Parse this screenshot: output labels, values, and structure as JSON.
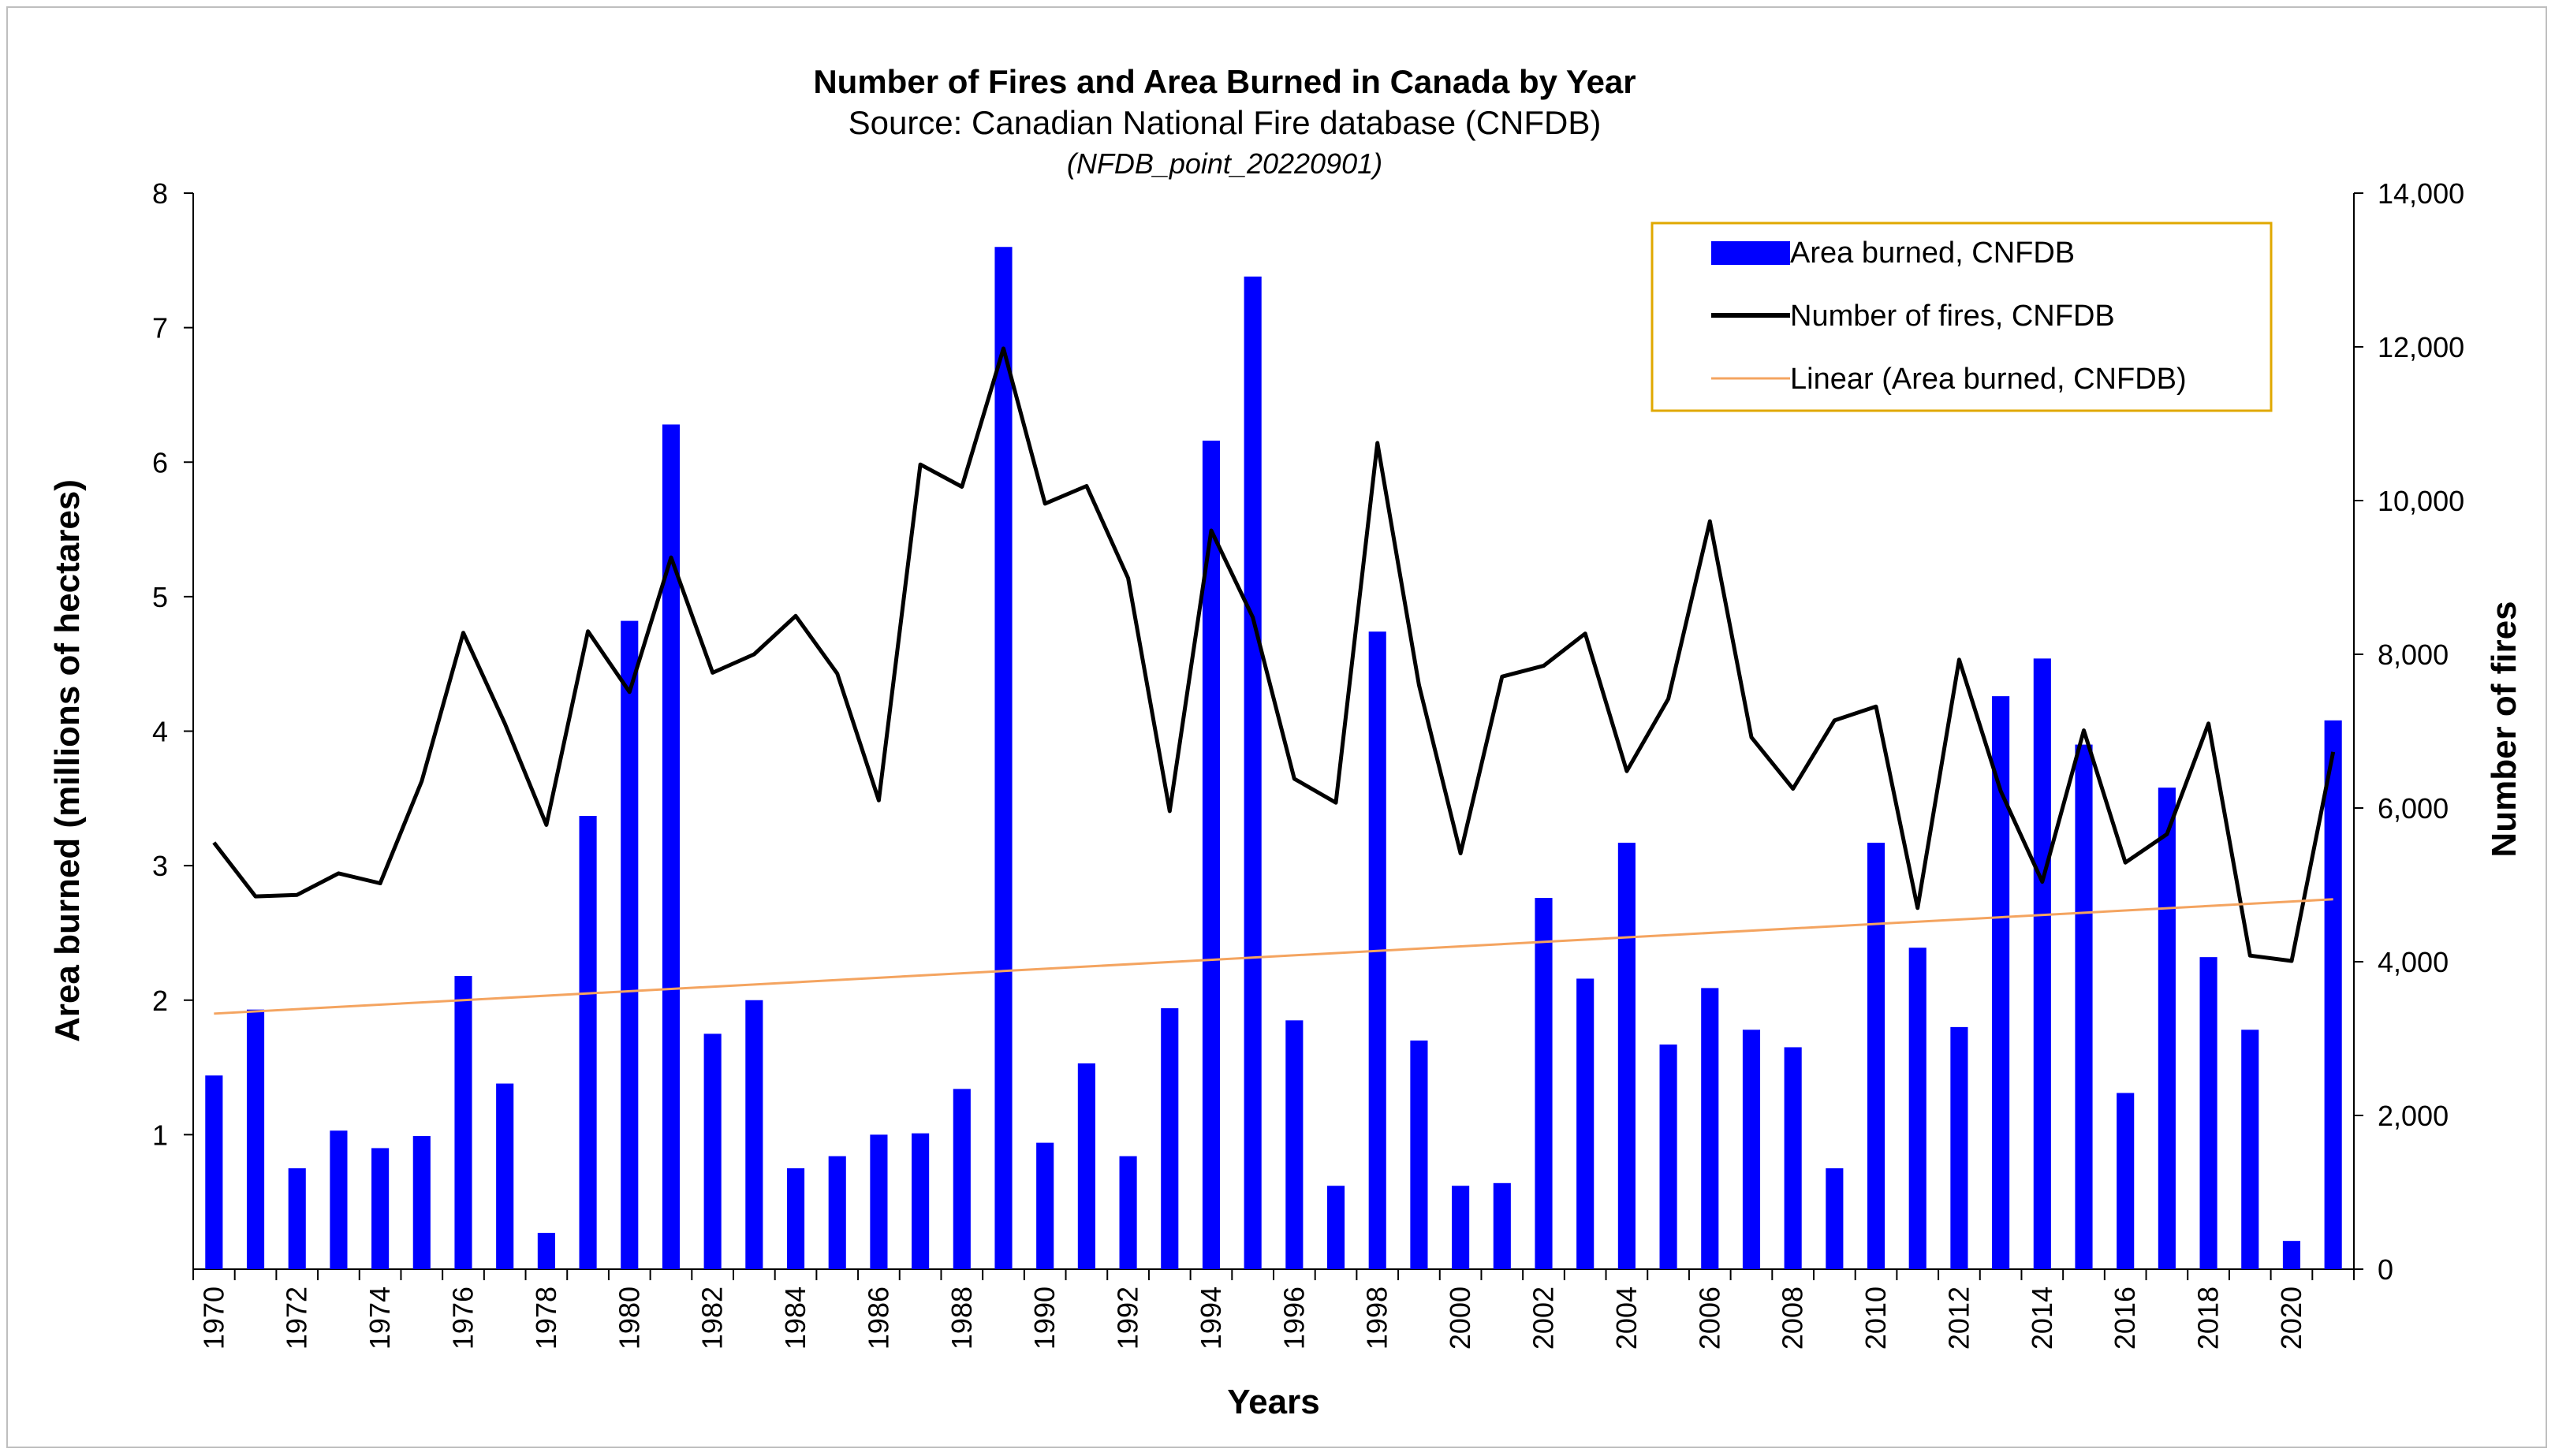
{
  "chart_data": {
    "type": "bar+line",
    "title": "Number of Fires and Area Burned in Canada by Year",
    "subtitle": "Source: Canadian National Fire database (CNFDB)",
    "source_note": "(NFDB_point_20220901)",
    "xlabel": "Years",
    "ylabel_left": "Area burned (millions of hectares)",
    "ylabel_right": "Number of fires",
    "ylim_left": [
      0,
      8
    ],
    "ylim_right": [
      0,
      14000
    ],
    "y_left_ticks": [
      "1",
      "2",
      "3",
      "4",
      "5",
      "6",
      "7",
      "8"
    ],
    "y_right_ticks": [
      "0",
      "2,000",
      "4,000",
      "6,000",
      "8,000",
      "10,000",
      "12,000",
      "14,000"
    ],
    "x_tick_labels": [
      "1970",
      "1972",
      "1974",
      "1976",
      "1978",
      "1980",
      "1982",
      "1984",
      "1986",
      "1988",
      "1990",
      "1992",
      "1994",
      "1996",
      "1998",
      "2000",
      "2002",
      "2004",
      "2006",
      "2008",
      "2010",
      "2012",
      "2014",
      "2016",
      "2018",
      "2020"
    ],
    "years": [
      1970,
      1971,
      1972,
      1973,
      1974,
      1975,
      1976,
      1977,
      1978,
      1979,
      1980,
      1981,
      1982,
      1983,
      1984,
      1985,
      1986,
      1987,
      1988,
      1989,
      1990,
      1991,
      1992,
      1993,
      1994,
      1995,
      1996,
      1997,
      1998,
      1999,
      2000,
      2001,
      2002,
      2003,
      2004,
      2005,
      2006,
      2007,
      2008,
      2009,
      2010,
      2011,
      2012,
      2013,
      2014,
      2015,
      2016,
      2017,
      2018,
      2019,
      2020,
      2021
    ],
    "series": [
      {
        "name": "Area burned, CNFDB",
        "kind": "bar",
        "axis": "left",
        "color": "#0000ff",
        "values": [
          1.44,
          1.93,
          0.75,
          1.03,
          0.9,
          0.99,
          2.18,
          1.38,
          0.27,
          3.37,
          4.82,
          6.28,
          1.75,
          2.0,
          0.75,
          0.84,
          1.0,
          1.01,
          1.34,
          7.6,
          0.94,
          1.53,
          0.84,
          1.94,
          6.16,
          7.38,
          1.85,
          0.62,
          4.74,
          1.7,
          0.62,
          0.64,
          2.76,
          2.16,
          3.17,
          1.67,
          2.09,
          1.78,
          1.65,
          0.75,
          3.17,
          2.39,
          1.8,
          4.26,
          4.54,
          3.9,
          1.31,
          3.58,
          2.32,
          1.78,
          0.21,
          4.08
        ]
      },
      {
        "name": "Number of fires, CNFDB",
        "kind": "line",
        "axis": "right",
        "color": "#000000",
        "values": [
          5550,
          4850,
          4870,
          5150,
          5020,
          6350,
          8280,
          7100,
          5780,
          8300,
          7510,
          9260,
          7760,
          8000,
          8500,
          7750,
          6100,
          10470,
          10180,
          11980,
          9960,
          10190,
          8990,
          5960,
          9610,
          8480,
          6380,
          6070,
          10750,
          7600,
          5410,
          7710,
          7850,
          8270,
          6480,
          7420,
          9730,
          6920,
          6250,
          7140,
          7320,
          4700,
          7930,
          6220,
          5040,
          7010,
          5290,
          5660,
          7100,
          4080,
          4010,
          6730
        ]
      },
      {
        "name": "Linear (Area burned, CNFDB)",
        "kind": "trendline",
        "axis": "left",
        "color": "#f4a460",
        "values": [
          1.9,
          2.75
        ]
      }
    ],
    "legend_position": "top-right",
    "grid": false
  }
}
